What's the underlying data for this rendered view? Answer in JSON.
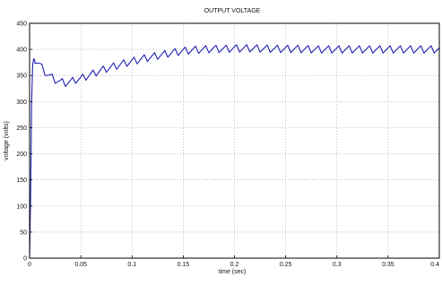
{
  "chart_data": {
    "type": "line",
    "title": "OUTPUT VOLTAGE",
    "xlabel": "time (sec)",
    "ylabel": "voltage (volts)",
    "xlim": [
      0,
      0.4
    ],
    "ylim": [
      0,
      450
    ],
    "x_ticks": [
      0,
      0.05,
      0.1,
      0.15,
      0.2,
      0.25,
      0.3,
      0.35,
      0.4
    ],
    "x_tick_labels": [
      "0",
      "0.05",
      "0.1",
      "0.15",
      "0.2",
      "0.25",
      "0.3",
      "0.35",
      "0.4"
    ],
    "y_ticks": [
      0,
      50,
      100,
      150,
      200,
      250,
      300,
      350,
      400,
      450
    ],
    "y_tick_labels": [
      "0",
      "50",
      "100",
      "150",
      "200",
      "250",
      "300",
      "350",
      "400",
      "450"
    ],
    "grid": true,
    "grid_style": "dotted",
    "series": [
      {
        "color": "#1f1fb4",
        "x": [
          0,
          0.001,
          0.002,
          0.003,
          0.004,
          0.008,
          0.012,
          0.016,
          0.02,
          0.025,
          0.03,
          0.035,
          0.04,
          0.045,
          0.05,
          0.055,
          0.06,
          0.065,
          0.07,
          0.08,
          0.09,
          0.1,
          0.11,
          0.12,
          0.13,
          0.14,
          0.15,
          0.16,
          0.17,
          0.18,
          0.19,
          0.2,
          0.21,
          0.22,
          0.24,
          0.26,
          0.28,
          0.3,
          0.32,
          0.34,
          0.36,
          0.38,
          0.4
        ],
        "y": [
          0,
          120,
          300,
          370,
          382,
          375,
          365,
          355,
          348,
          342,
          338,
          336,
          338,
          342,
          344,
          348,
          352,
          356,
          360,
          366,
          372,
          377,
          382,
          386,
          390,
          394,
          397,
          399,
          400,
          401,
          401,
          402,
          402,
          402,
          401,
          401,
          400,
          400,
          400,
          400,
          400,
          400,
          400
        ],
        "ripple_amplitude": 7,
        "ripple_period": 0.01
      }
    ]
  }
}
